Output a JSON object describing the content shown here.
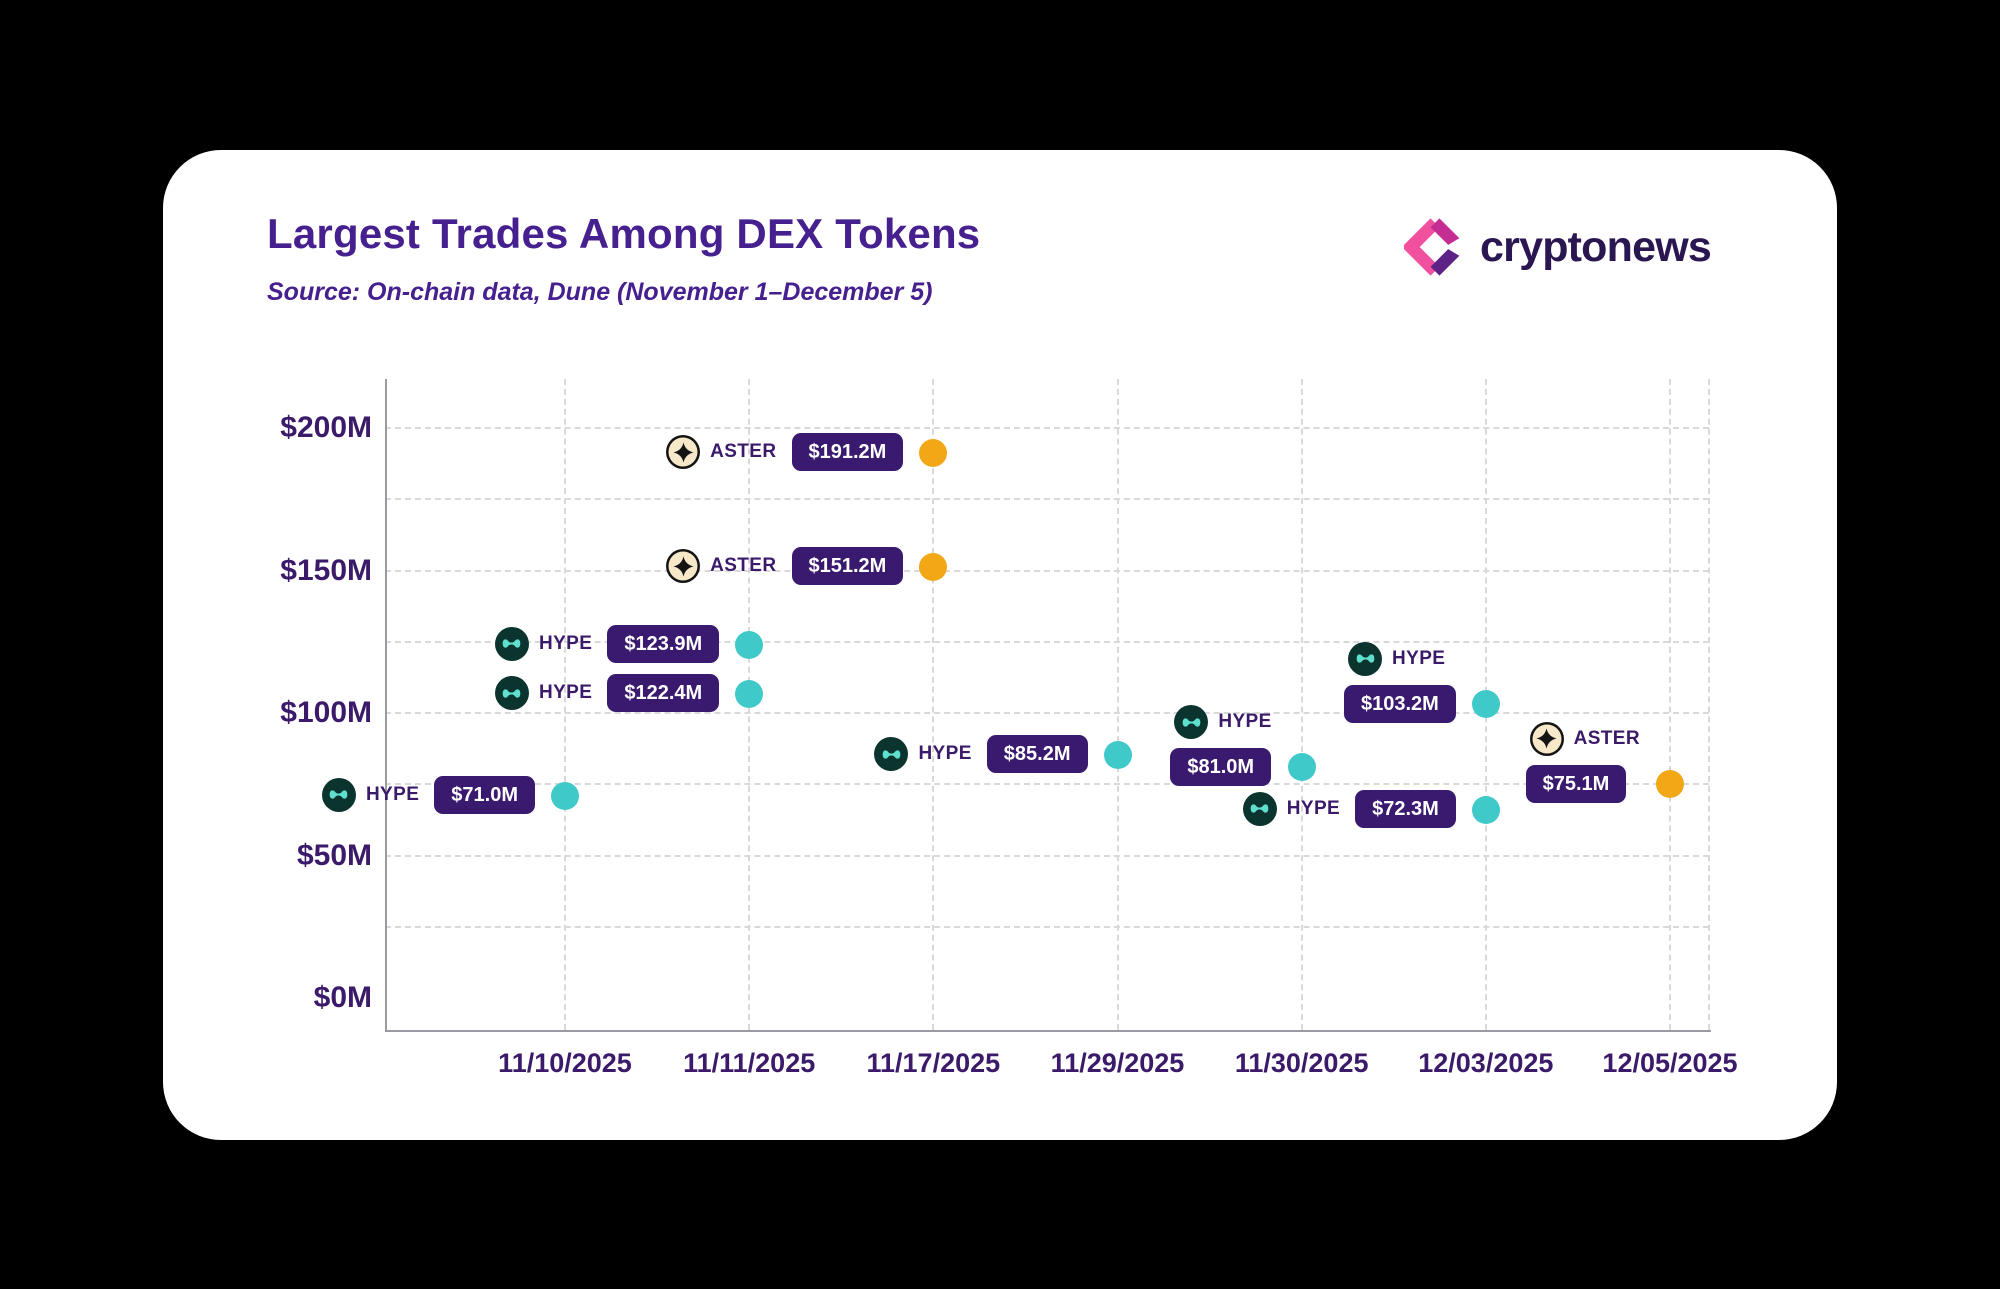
{
  "header": {
    "title": "Largest Trades Among DEX Tokens",
    "source": "Source: On-chain data, Dune (November 1–December 5)",
    "brand": "cryptonews"
  },
  "chart_data": {
    "type": "scatter",
    "title": "Largest Trades Among DEX Tokens",
    "subtitle": "Source: On-chain data, Dune (November 1–December 5)",
    "x_ticks": [
      "11/10/2025",
      "11/11/2025",
      "11/17/2025",
      "11/29/2025",
      "11/30/2025",
      "12/03/2025",
      "12/05/2025"
    ],
    "y_ticks": [
      {
        "label": "$200M",
        "value": 200
      },
      {
        "label": "$150M",
        "value": 150
      },
      {
        "label": "$100M",
        "value": 100
      },
      {
        "label": "$50M",
        "value": 50
      },
      {
        "label": "$0M",
        "value": 0
      }
    ],
    "ylim": [
      0,
      215
    ],
    "grid": {
      "step": 25,
      "style": "dashed"
    },
    "badge_color": "#3a1a6e",
    "tokens": {
      "HYPE": {
        "dot_color": "#3fc9c9",
        "icon_bg": "#0b342e",
        "icon_fg": "#5fe0cf"
      },
      "ASTER": {
        "dot_color": "#f2a717",
        "icon_bg": "#f7e8c9",
        "icon_fg": "#141414",
        "icon_border": "#141414"
      }
    },
    "points": [
      {
        "token": "HYPE",
        "date": "11/10/2025",
        "value": 71.0,
        "value_label": "$71.0M",
        "layout": "inline"
      },
      {
        "token": "HYPE",
        "date": "11/11/2025",
        "value": 123.9,
        "value_label": "$123.9M",
        "layout": "inline"
      },
      {
        "token": "HYPE",
        "date": "11/11/2025",
        "value": 122.4,
        "value_label": "$122.4M",
        "layout": "inline",
        "render_dy": 45
      },
      {
        "token": "ASTER",
        "date": "11/17/2025",
        "value": 191.2,
        "value_label": "$191.2M",
        "layout": "inline"
      },
      {
        "token": "ASTER",
        "date": "11/17/2025",
        "value": 151.2,
        "value_label": "$151.2M",
        "layout": "inline"
      },
      {
        "token": "HYPE",
        "date": "11/29/2025",
        "value": 85.2,
        "value_label": "$85.2M",
        "layout": "inline"
      },
      {
        "token": "HYPE",
        "date": "11/30/2025",
        "value": 81.0,
        "value_label": "$81.0M",
        "layout": "stacked"
      },
      {
        "token": "HYPE",
        "date": "12/03/2025",
        "value": 103.2,
        "value_label": "$103.2M",
        "layout": "stacked"
      },
      {
        "token": "HYPE",
        "date": "12/03/2025",
        "value": 72.3,
        "value_label": "$72.3M",
        "layout": "inline",
        "render_dy": 18
      },
      {
        "token": "ASTER",
        "date": "12/05/2025",
        "value": 75.1,
        "value_label": "$75.1M",
        "layout": "stacked"
      }
    ]
  }
}
